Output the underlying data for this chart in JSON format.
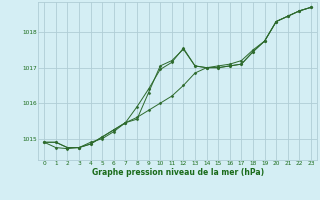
{
  "background_color": "#d4eef4",
  "grid_color": "#b0cdd6",
  "line_color": "#2d6a2d",
  "text_color": "#1a6b1a",
  "xlabel": "Graphe pression niveau de la mer (hPa)",
  "xlim": [
    -0.5,
    23.5
  ],
  "ylim": [
    1014.4,
    1018.85
  ],
  "yticks": [
    1015,
    1016,
    1017,
    1018
  ],
  "xticks": [
    0,
    1,
    2,
    3,
    4,
    5,
    6,
    7,
    8,
    9,
    10,
    11,
    12,
    13,
    14,
    15,
    16,
    17,
    18,
    19,
    20,
    21,
    22,
    23
  ],
  "series": [
    [
      1014.9,
      1014.9,
      1014.75,
      1014.75,
      1014.85,
      1015.05,
      1015.25,
      1015.45,
      1015.6,
      1015.8,
      1016.0,
      1016.2,
      1016.5,
      1016.85,
      1017.0,
      1017.05,
      1017.1,
      1017.2,
      1017.5,
      1017.75,
      1018.3,
      1018.45,
      1018.6,
      1018.7
    ],
    [
      1014.9,
      1014.75,
      1014.72,
      1014.75,
      1014.9,
      1015.0,
      1015.2,
      1015.45,
      1015.9,
      1016.4,
      1016.95,
      1017.15,
      1017.55,
      1017.05,
      1017.0,
      1017.0,
      1017.05,
      1017.1,
      1017.45,
      1017.75,
      1018.3,
      1018.45,
      1018.6,
      1018.7
    ],
    [
      1014.9,
      1014.9,
      1014.75,
      1014.75,
      1014.85,
      1015.05,
      1015.25,
      1015.45,
      1015.55,
      1016.3,
      1017.05,
      1017.2,
      1017.52,
      1017.05,
      1017.0,
      1017.0,
      1017.05,
      1017.1,
      1017.45,
      1017.75,
      1018.3,
      1018.45,
      1018.6,
      1018.7
    ]
  ]
}
